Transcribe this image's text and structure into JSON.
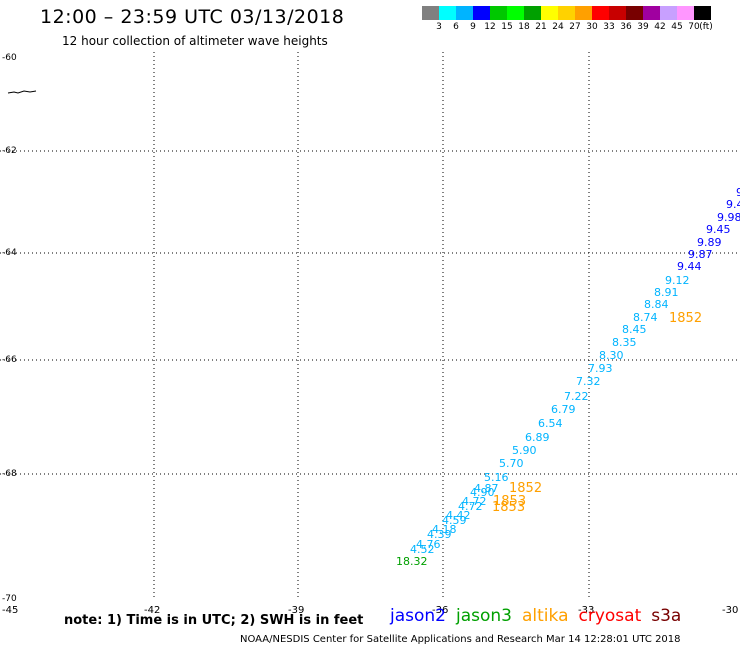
{
  "header": {
    "title": "12:00 – 23:59 UTC 03/13/2018",
    "subtitle": "12 hour collection of altimeter wave heights"
  },
  "colorbar": {
    "colors": [
      "#808080",
      "#00ffff",
      "#00b4ff",
      "#0000ff",
      "#00c800",
      "#00ff00",
      "#00a000",
      "#ffff00",
      "#ffd200",
      "#ffa000",
      "#ff0000",
      "#c80000",
      "#780000",
      "#a000a0",
      "#c8a0ff",
      "#ff96ff",
      "#000000"
    ],
    "labels": [
      "3",
      "6",
      "9",
      "12",
      "15",
      "18",
      "21",
      "24",
      "27",
      "30",
      "33",
      "36",
      "39",
      "42",
      "45",
      "70",
      "(ft)"
    ]
  },
  "map": {
    "lat_labels": [
      "-60",
      "-62",
      "-64",
      "-66",
      "-68",
      "-70"
    ],
    "lon_labels": [
      "-45",
      "-42",
      "-39",
      "-36",
      "-33",
      "-30"
    ],
    "observations": [
      {
        "label": "9.",
        "color": "#0000ff"
      },
      {
        "label": "9.4",
        "color": "#0000ff"
      },
      {
        "label": "9.98",
        "color": "#0000ff"
      },
      {
        "label": "9.45",
        "color": "#0000ff"
      },
      {
        "label": "9.89",
        "color": "#0000ff"
      },
      {
        "label": "9.87",
        "color": "#0000ff"
      },
      {
        "label": "9.44",
        "color": "#0000ff"
      },
      {
        "label": "9.12",
        "color": "#00b4ff"
      },
      {
        "label": "8.91",
        "color": "#00b4ff"
      },
      {
        "label": "8.84",
        "color": "#00b4ff"
      },
      {
        "label": "8.74",
        "color": "#00b4ff"
      },
      {
        "label": "8.45",
        "color": "#00b4ff"
      },
      {
        "label": "8.35",
        "color": "#00b4ff"
      },
      {
        "label": "8.30",
        "color": "#00b4ff"
      },
      {
        "label": "7.93",
        "color": "#00b4ff"
      },
      {
        "label": "7.32",
        "color": "#00b4ff"
      },
      {
        "label": "7.22",
        "color": "#00b4ff"
      },
      {
        "label": "6.79",
        "color": "#00b4ff"
      },
      {
        "label": "6.54",
        "color": "#00b4ff"
      },
      {
        "label": "6.89",
        "color": "#00b4ff"
      },
      {
        "label": "5.90",
        "color": "#00b4ff"
      },
      {
        "label": "5.70",
        "color": "#00b4ff"
      },
      {
        "label": "5.16",
        "color": "#00b4ff"
      },
      {
        "label": "4.87",
        "color": "#00b4ff"
      },
      {
        "label": "4.90",
        "color": "#00b4ff"
      },
      {
        "label": "4.72",
        "color": "#00b4ff"
      },
      {
        "label": "4.72",
        "color": "#00b4ff"
      },
      {
        "label": "4.42",
        "color": "#00b4ff"
      },
      {
        "label": "4.59",
        "color": "#00b4ff"
      },
      {
        "label": "4.18",
        "color": "#00b4ff"
      },
      {
        "label": "4.39",
        "color": "#00b4ff"
      },
      {
        "label": "4.76",
        "color": "#00b4ff"
      },
      {
        "label": "4.52",
        "color": "#00b4ff"
      },
      {
        "label": "18.32",
        "color": "#00a000"
      },
      {
        "label": "1852",
        "color": "#ffa000"
      },
      {
        "label": "1852",
        "color": "#ffa000"
      },
      {
        "label": "1853",
        "color": "#ffa000"
      },
      {
        "label": "1853",
        "color": "#ffa000"
      }
    ]
  },
  "footer": {
    "note": "note: 1) Time is in UTC; 2) SWH is in feet",
    "satellites": [
      {
        "name": "jason2",
        "color": "#0000ff"
      },
      {
        "name": "jason3",
        "color": "#00a000"
      },
      {
        "name": "altika",
        "color": "#ffa000"
      },
      {
        "name": "cryosat",
        "color": "#ff0000"
      },
      {
        "name": "s3a",
        "color": "#780000"
      }
    ],
    "credit": "NOAA/NESDIS Center for Satellite Applications and Research    Mar 14 12:28:01 UTC 2018"
  }
}
